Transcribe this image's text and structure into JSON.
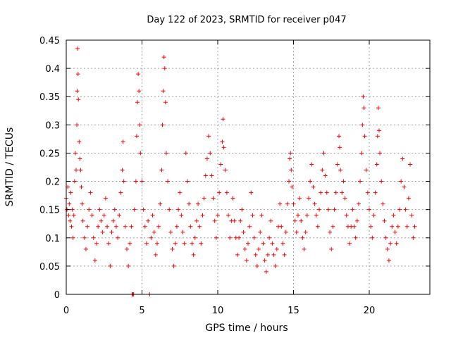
{
  "chart_data": {
    "type": "scatter",
    "title": "Day 122 of 2023, SRMTID for receiver p047",
    "xlabel": "GPS time / hours",
    "ylabel": "SRMTID / TECUs",
    "xlim": [
      0,
      24
    ],
    "ylim": [
      0,
      0.45
    ],
    "xticks": [
      0,
      5,
      10,
      15,
      20
    ],
    "xtick_labels": [
      "0",
      "5",
      "10",
      "15",
      "20"
    ],
    "yticks": [
      0,
      0.05,
      0.1,
      0.15,
      0.2,
      0.25,
      0.3,
      0.35,
      0.4,
      0.45
    ],
    "ytick_labels": [
      "0",
      "0.05",
      "0.1",
      "0.15",
      "0.2",
      "0.25",
      "0.3",
      "0.35",
      "0.4",
      "0.45"
    ],
    "grid": true,
    "marker": "+",
    "color": "#ff0000",
    "series": [
      {
        "name": "SRMTID",
        "points": [
          [
            0.0,
            0.17
          ],
          [
            0.05,
            0.15
          ],
          [
            0.1,
            0.19
          ],
          [
            0.15,
            0.14
          ],
          [
            0.2,
            0.16
          ],
          [
            0.25,
            0.13
          ],
          [
            0.3,
            0.18
          ],
          [
            0.35,
            0.12
          ],
          [
            0.4,
            0.15
          ],
          [
            0.45,
            0.1
          ],
          [
            0.5,
            0.14
          ],
          [
            0.55,
            0.2
          ],
          [
            0.6,
            0.25
          ],
          [
            0.65,
            0.22
          ],
          [
            0.7,
            0.3
          ],
          [
            0.72,
            0.36
          ],
          [
            0.75,
            0.435
          ],
          [
            0.78,
            0.39
          ],
          [
            0.8,
            0.345
          ],
          [
            0.85,
            0.27
          ],
          [
            0.9,
            0.24
          ],
          [
            0.95,
            0.22
          ],
          [
            1.0,
            0.19
          ],
          [
            1.05,
            0.16
          ],
          [
            1.1,
            0.13
          ],
          [
            1.2,
            0.1
          ],
          [
            1.3,
            0.08
          ],
          [
            1.4,
            0.12
          ],
          [
            1.5,
            0.15
          ],
          [
            1.6,
            0.18
          ],
          [
            1.7,
            0.14
          ],
          [
            1.8,
            0.1
          ],
          [
            1.9,
            0.06
          ],
          [
            2.0,
            0.09
          ],
          [
            2.1,
            0.12
          ],
          [
            2.2,
            0.15
          ],
          [
            2.3,
            0.13
          ],
          [
            2.4,
            0.11
          ],
          [
            2.5,
            0.14
          ],
          [
            2.6,
            0.17
          ],
          [
            2.7,
            0.12
          ],
          [
            2.8,
            0.09
          ],
          [
            2.9,
            0.05
          ],
          [
            3.0,
            0.11
          ],
          [
            3.1,
            0.13
          ],
          [
            3.2,
            0.15
          ],
          [
            3.3,
            0.12
          ],
          [
            3.4,
            0.1
          ],
          [
            3.5,
            0.14
          ],
          [
            3.6,
            0.18
          ],
          [
            3.7,
            0.22
          ],
          [
            3.75,
            0.27
          ],
          [
            3.8,
            0.2
          ],
          [
            3.9,
            0.12
          ],
          [
            4.0,
            0.08
          ],
          [
            4.1,
            0.05
          ],
          [
            4.2,
            0.09
          ],
          [
            4.3,
            0.12
          ],
          [
            4.35,
            0.0
          ],
          [
            4.4,
            0.0
          ],
          [
            4.45,
            0.0
          ],
          [
            4.5,
            0.15
          ],
          [
            4.6,
            0.2
          ],
          [
            4.65,
            0.28
          ],
          [
            4.7,
            0.34
          ],
          [
            4.75,
            0.39
          ],
          [
            4.8,
            0.36
          ],
          [
            4.85,
            0.3
          ],
          [
            4.9,
            0.25
          ],
          [
            5.0,
            0.2
          ],
          [
            5.1,
            0.15
          ],
          [
            5.2,
            0.12
          ],
          [
            5.3,
            0.09
          ],
          [
            5.4,
            0.13
          ],
          [
            5.5,
            0.0
          ],
          [
            5.6,
            0.1
          ],
          [
            5.7,
            0.14
          ],
          [
            5.8,
            0.11
          ],
          [
            5.9,
            0.07
          ],
          [
            6.0,
            0.09
          ],
          [
            6.1,
            0.12
          ],
          [
            6.2,
            0.16
          ],
          [
            6.3,
            0.22
          ],
          [
            6.35,
            0.3
          ],
          [
            6.4,
            0.36
          ],
          [
            6.45,
            0.42
          ],
          [
            6.5,
            0.4
          ],
          [
            6.55,
            0.34
          ],
          [
            6.6,
            0.25
          ],
          [
            6.7,
            0.2
          ],
          [
            6.8,
            0.15
          ],
          [
            6.9,
            0.11
          ],
          [
            7.0,
            0.08
          ],
          [
            7.1,
            0.05
          ],
          [
            7.2,
            0.09
          ],
          [
            7.3,
            0.12
          ],
          [
            7.4,
            0.15
          ],
          [
            7.5,
            0.18
          ],
          [
            7.6,
            0.14
          ],
          [
            7.7,
            0.11
          ],
          [
            7.8,
            0.09
          ],
          [
            7.9,
            0.25
          ],
          [
            8.0,
            0.2
          ],
          [
            8.1,
            0.16
          ],
          [
            8.2,
            0.12
          ],
          [
            8.3,
            0.09
          ],
          [
            8.4,
            0.07
          ],
          [
            8.5,
            0.1
          ],
          [
            8.6,
            0.13
          ],
          [
            8.7,
            0.16
          ],
          [
            8.8,
            0.12
          ],
          [
            8.9,
            0.09
          ],
          [
            9.0,
            0.14
          ],
          [
            9.1,
            0.17
          ],
          [
            9.2,
            0.21
          ],
          [
            9.3,
            0.24
          ],
          [
            9.4,
            0.28
          ],
          [
            9.5,
            0.25
          ],
          [
            9.6,
            0.21
          ],
          [
            9.7,
            0.17
          ],
          [
            9.8,
            0.13
          ],
          [
            9.9,
            0.1
          ],
          [
            10.0,
            0.14
          ],
          [
            10.1,
            0.18
          ],
          [
            10.2,
            0.23
          ],
          [
            10.3,
            0.27
          ],
          [
            10.35,
            0.31
          ],
          [
            10.4,
            0.26
          ],
          [
            10.5,
            0.22
          ],
          [
            10.6,
            0.18
          ],
          [
            10.7,
            0.14
          ],
          [
            10.8,
            0.1
          ],
          [
            10.9,
            0.13
          ],
          [
            11.0,
            0.17
          ],
          [
            11.1,
            0.13
          ],
          [
            11.2,
            0.1
          ],
          [
            11.3,
            0.07
          ],
          [
            11.4,
            0.1
          ],
          [
            11.5,
            0.13
          ],
          [
            11.6,
            0.15
          ],
          [
            11.7,
            0.11
          ],
          [
            11.8,
            0.08
          ],
          [
            11.9,
            0.06
          ],
          [
            12.0,
            0.09
          ],
          [
            12.1,
            0.12
          ],
          [
            12.2,
            0.18
          ],
          [
            12.3,
            0.14
          ],
          [
            12.4,
            0.1
          ],
          [
            12.5,
            0.07
          ],
          [
            12.6,
            0.05
          ],
          [
            12.7,
            0.08
          ],
          [
            12.8,
            0.11
          ],
          [
            12.9,
            0.14
          ],
          [
            13.0,
            0.09
          ],
          [
            13.1,
            0.06
          ],
          [
            13.2,
            0.04
          ],
          [
            13.3,
            0.07
          ],
          [
            13.4,
            0.1
          ],
          [
            13.5,
            0.13
          ],
          [
            13.6,
            0.09
          ],
          [
            13.7,
            0.07
          ],
          [
            13.8,
            0.05
          ],
          [
            13.9,
            0.08
          ],
          [
            14.0,
            0.12
          ],
          [
            14.1,
            0.16
          ],
          [
            14.2,
            0.12
          ],
          [
            14.3,
            0.09
          ],
          [
            14.4,
            0.07
          ],
          [
            14.5,
            0.11
          ],
          [
            14.6,
            0.16
          ],
          [
            14.7,
            0.2
          ],
          [
            14.75,
            0.24
          ],
          [
            14.8,
            0.25
          ],
          [
            14.85,
            0.22
          ],
          [
            14.9,
            0.19
          ],
          [
            15.0,
            0.16
          ],
          [
            15.1,
            0.13
          ],
          [
            15.2,
            0.11
          ],
          [
            15.3,
            0.14
          ],
          [
            15.4,
            0.17
          ],
          [
            15.5,
            0.13
          ],
          [
            15.6,
            0.1
          ],
          [
            15.7,
            0.08
          ],
          [
            15.8,
            0.11
          ],
          [
            15.9,
            0.14
          ],
          [
            16.0,
            0.17
          ],
          [
            16.1,
            0.2
          ],
          [
            16.2,
            0.23
          ],
          [
            16.3,
            0.19
          ],
          [
            16.4,
            0.16
          ],
          [
            16.5,
            0.14
          ],
          [
            16.6,
            0.12
          ],
          [
            16.7,
            0.15
          ],
          [
            16.8,
            0.18
          ],
          [
            16.9,
            0.22
          ],
          [
            17.0,
            0.25
          ],
          [
            17.1,
            0.21
          ],
          [
            17.2,
            0.18
          ],
          [
            17.3,
            0.15
          ],
          [
            17.4,
            0.11
          ],
          [
            17.5,
            0.08
          ],
          [
            17.6,
            0.12
          ],
          [
            17.7,
            0.15
          ],
          [
            17.8,
            0.18
          ],
          [
            17.9,
            0.23
          ],
          [
            18.0,
            0.28
          ],
          [
            18.05,
            0.26
          ],
          [
            18.1,
            0.22
          ],
          [
            18.2,
            0.18
          ],
          [
            18.3,
            0.2
          ],
          [
            18.4,
            0.17
          ],
          [
            18.5,
            0.14
          ],
          [
            18.6,
            0.12
          ],
          [
            18.7,
            0.09
          ],
          [
            18.8,
            0.12
          ],
          [
            18.9,
            0.15
          ],
          [
            19.0,
            0.12
          ],
          [
            19.1,
            0.1
          ],
          [
            19.2,
            0.13
          ],
          [
            19.3,
            0.16
          ],
          [
            19.4,
            0.2
          ],
          [
            19.5,
            0.25
          ],
          [
            19.55,
            0.3
          ],
          [
            19.6,
            0.35
          ],
          [
            19.65,
            0.33
          ],
          [
            19.7,
            0.28
          ],
          [
            19.8,
            0.22
          ],
          [
            19.9,
            0.18
          ],
          [
            20.0,
            0.15
          ],
          [
            20.1,
            0.12
          ],
          [
            20.2,
            0.1
          ],
          [
            20.3,
            0.14
          ],
          [
            20.4,
            0.18
          ],
          [
            20.5,
            0.23
          ],
          [
            20.55,
            0.28
          ],
          [
            20.6,
            0.33
          ],
          [
            20.65,
            0.29
          ],
          [
            20.7,
            0.25
          ],
          [
            20.8,
            0.2
          ],
          [
            20.9,
            0.16
          ],
          [
            21.0,
            0.13
          ],
          [
            21.1,
            0.1
          ],
          [
            21.2,
            0.08
          ],
          [
            21.3,
            0.06
          ],
          [
            21.4,
            0.09
          ],
          [
            21.5,
            0.12
          ],
          [
            21.6,
            0.14
          ],
          [
            21.7,
            0.11
          ],
          [
            21.8,
            0.09
          ],
          [
            21.9,
            0.12
          ],
          [
            22.0,
            0.15
          ],
          [
            22.1,
            0.2
          ],
          [
            22.2,
            0.24
          ],
          [
            22.3,
            0.19
          ],
          [
            22.4,
            0.15
          ],
          [
            22.5,
            0.12
          ],
          [
            22.6,
            0.17
          ],
          [
            22.7,
            0.23
          ],
          [
            22.8,
            0.14
          ],
          [
            22.9,
            0.1
          ],
          [
            23.0,
            0.12
          ]
        ]
      }
    ]
  }
}
